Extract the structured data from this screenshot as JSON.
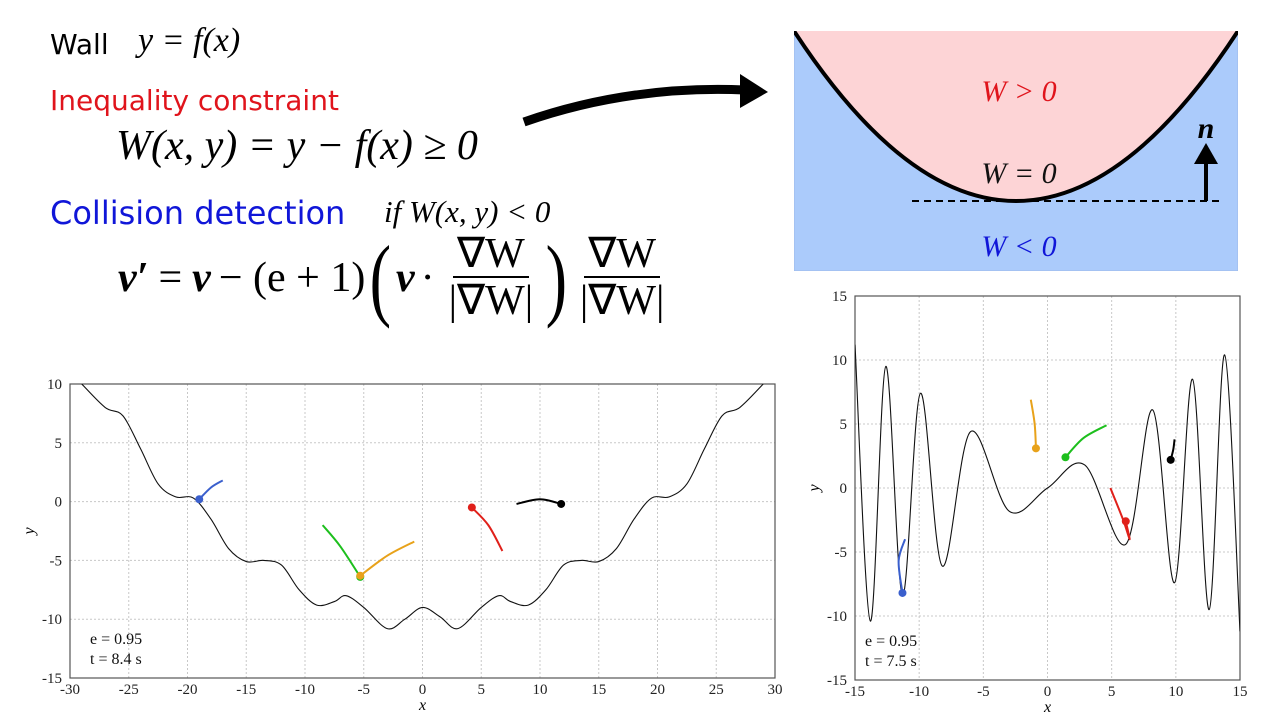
{
  "slide": {
    "wall": {
      "label": "Wall",
      "equation": "y = f(x)"
    },
    "inequality": {
      "label": "Inequality constraint",
      "equation": "W(x, y) = y − f(x) ≥ 0",
      "color": "#e0141c"
    },
    "collision": {
      "label": "Collision detection",
      "condition": "if  W(x, y) < 0",
      "color": "#1016d8",
      "update": {
        "lhs": "v′",
        "eq": "=",
        "v": "v",
        "minus": "− (e + 1)",
        "dot": "·",
        "grad": "∇W",
        "norm": "|∇W|"
      }
    },
    "arrow_icon": "curved-arrow-right"
  },
  "diagram": {
    "region_above": {
      "label": "W > 0",
      "color": "#e0141c",
      "fill": "#fdd4d6"
    },
    "region_below": {
      "label": "W < 0",
      "color": "#1016d8",
      "fill": "#abcbfb"
    },
    "boundary": {
      "label": "W = 0"
    },
    "normal": {
      "label": "n"
    }
  },
  "chart_data": [
    {
      "type": "line",
      "title": "",
      "xlabel": "x",
      "ylabel": "y",
      "xlim": [
        -30,
        30
      ],
      "ylim": [
        -15,
        10
      ],
      "xticks": [
        -30,
        -25,
        -20,
        -15,
        -10,
        -5,
        0,
        5,
        10,
        15,
        20,
        25,
        30
      ],
      "yticks": [
        -15,
        -10,
        -5,
        0,
        5,
        10
      ],
      "grid": true,
      "wall_function": "y = 0.015 x^2 + cos-like ripples; minima ≈ -10.8 near x=±3, local max -9 at x=0",
      "wall_points": [
        [
          -29,
          10
        ],
        [
          -27,
          8
        ],
        [
          -25.5,
          7.3
        ],
        [
          -24,
          4.5
        ],
        [
          -22.5,
          1.5
        ],
        [
          -21,
          0.4
        ],
        [
          -19.5,
          0.3
        ],
        [
          -18,
          -1.5
        ],
        [
          -16.5,
          -4
        ],
        [
          -15,
          -5.1
        ],
        [
          -13.5,
          -5
        ],
        [
          -12,
          -5.4
        ],
        [
          -10.5,
          -7.5
        ],
        [
          -9,
          -8.8
        ],
        [
          -7.5,
          -8.5
        ],
        [
          -6.5,
          -8
        ],
        [
          -5,
          -9
        ],
        [
          -3,
          -10.8
        ],
        [
          -1.5,
          -10
        ],
        [
          0,
          -9
        ],
        [
          1.5,
          -9.8
        ],
        [
          3,
          -10.8
        ],
        [
          5,
          -9
        ],
        [
          6.5,
          -8
        ],
        [
          7.5,
          -8.5
        ],
        [
          9,
          -8.8
        ],
        [
          10.5,
          -7.5
        ],
        [
          12,
          -5.4
        ],
        [
          13.5,
          -5
        ],
        [
          15,
          -5.1
        ],
        [
          16.5,
          -4
        ],
        [
          18,
          -1.5
        ],
        [
          19.5,
          0.3
        ],
        [
          21,
          0.4
        ],
        [
          22.5,
          1.5
        ],
        [
          24,
          4.5
        ],
        [
          25.5,
          7.3
        ],
        [
          27,
          8
        ],
        [
          29,
          10
        ]
      ],
      "particles": [
        {
          "name": "blue",
          "color": "#3a5fcd",
          "position": [
            -19,
            0.2
          ],
          "trail": [
            [
              -17,
              1.8
            ],
            [
              -18,
              1.2
            ],
            [
              -19,
              0.2
            ]
          ]
        },
        {
          "name": "green",
          "color": "#1dbf1d",
          "position": [
            -5.3,
            -6.4
          ],
          "trail": [
            [
              -8.5,
              -2
            ],
            [
              -7,
              -3.8
            ],
            [
              -5.3,
              -6.4
            ]
          ]
        },
        {
          "name": "orange",
          "color": "#e8a21a",
          "position": [
            -5.3,
            -6.3
          ],
          "trail": [
            [
              -0.7,
              -3.4
            ],
            [
              -3,
              -4.6
            ],
            [
              -5.3,
              -6.3
            ]
          ]
        },
        {
          "name": "red",
          "color": "#e0201a",
          "position": [
            4.2,
            -0.5
          ],
          "trail": [
            [
              6.8,
              -4.2
            ],
            [
              5.6,
              -2
            ],
            [
              4.2,
              -0.5
            ]
          ]
        },
        {
          "name": "black",
          "color": "#000000",
          "position": [
            11.8,
            -0.2
          ],
          "trail": [
            [
              8,
              -0.2
            ],
            [
              10,
              0.2
            ],
            [
              11.8,
              -0.2
            ]
          ]
        }
      ],
      "annotations": [
        "e = 0.95",
        "t = 8.4 s"
      ]
    },
    {
      "type": "line",
      "title": "",
      "xlabel": "x",
      "ylabel": "y",
      "xlim": [
        -15,
        15
      ],
      "ylim": [
        -15,
        15
      ],
      "xticks": [
        -15,
        -10,
        -5,
        0,
        5,
        10,
        15
      ],
      "yticks": [
        -15,
        -10,
        -5,
        0,
        5,
        10,
        15
      ],
      "grid": true,
      "wall_function": "oscillating wall with amplitude growing with |x|",
      "wall_points": [
        [
          -15,
          11.2
        ],
        [
          -13.8,
          -10.4
        ],
        [
          -12.6,
          9.5
        ],
        [
          -11.3,
          -8.4
        ],
        [
          -9.9,
          7.4
        ],
        [
          -8.2,
          -6.1
        ],
        [
          -6,
          4.4
        ],
        [
          -3,
          -1.8
        ],
        [
          0,
          0
        ],
        [
          2.9,
          1.8
        ],
        [
          6.1,
          -4.4
        ],
        [
          8.2,
          6.1
        ],
        [
          9.9,
          -7.4
        ],
        [
          11.3,
          8.5
        ],
        [
          12.6,
          -9.5
        ],
        [
          13.8,
          10.4
        ],
        [
          15,
          -11.2
        ]
      ],
      "particles": [
        {
          "name": "blue",
          "color": "#3a5fcd",
          "position": [
            -11.3,
            -8.2
          ],
          "trail": [
            [
              -11.1,
              -4
            ],
            [
              -11.6,
              -5.7
            ],
            [
              -11.3,
              -8.2
            ]
          ]
        },
        {
          "name": "orange",
          "color": "#e8a21a",
          "position": [
            -0.9,
            3.1
          ],
          "trail": [
            [
              -1.3,
              6.9
            ],
            [
              -1,
              5
            ],
            [
              -0.9,
              3.1
            ]
          ]
        },
        {
          "name": "green",
          "color": "#1dbf1d",
          "position": [
            1.4,
            2.4
          ],
          "trail": [
            [
              4.6,
              4.9
            ],
            [
              2.8,
              3.9
            ],
            [
              1.4,
              2.4
            ]
          ]
        },
        {
          "name": "red",
          "color": "#e0201a",
          "position": [
            6.1,
            -2.6
          ],
          "trail": [
            [
              4.9,
              0
            ],
            [
              5.9,
              -2.5
            ],
            [
              6.4,
              -4
            ],
            [
              6.1,
              -2.6
            ]
          ]
        },
        {
          "name": "black",
          "color": "#000000",
          "position": [
            9.6,
            2.2
          ],
          "trail": [
            [
              9.9,
              3.8
            ],
            [
              9.8,
              3
            ],
            [
              9.6,
              2.2
            ]
          ]
        }
      ],
      "annotations": [
        "e = 0.95",
        "t = 7.5 s"
      ]
    }
  ]
}
